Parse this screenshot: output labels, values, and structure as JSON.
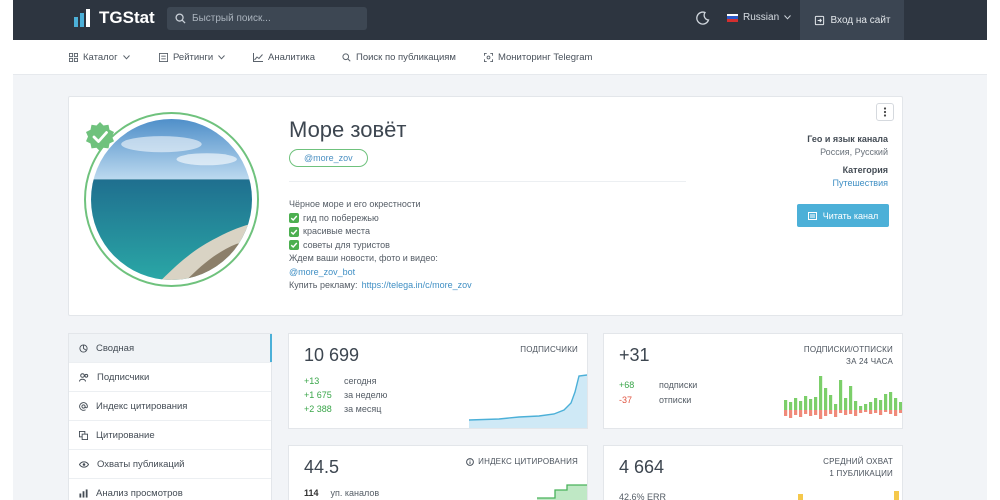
{
  "header": {
    "brand": "TGStat",
    "search_placeholder": "Быстрый поиск...",
    "language": "Russian",
    "login_label": "Вход на сайт"
  },
  "nav": {
    "items": [
      {
        "label": "Каталог",
        "icon": "grid-icon",
        "dropdown": true
      },
      {
        "label": "Рейтинги",
        "icon": "ratings-icon",
        "dropdown": true
      },
      {
        "label": "Аналитика",
        "icon": "chart-icon",
        "dropdown": false
      },
      {
        "label": "Поиск по публикациям",
        "icon": "search-icon",
        "dropdown": false
      },
      {
        "label": "Мониторинг Telegram",
        "icon": "monitor-icon",
        "dropdown": false
      }
    ]
  },
  "channel": {
    "title": "Море зовёт",
    "handle": "@more_zov",
    "description": {
      "intro": "Чёрное море и его окрестности",
      "bullets": [
        "гид по побережью",
        "красивые места",
        "советы для туристов"
      ],
      "news_line": "Ждем ваши новости, фото и видео:",
      "bot": "@more_zov_bot",
      "ads_label": "Купить рекламу:",
      "ads_link": "https://telega.in/c/more_zov"
    },
    "geo_label": "Гео и язык канала",
    "geo_value": "Россия, Русский",
    "category_label": "Категория",
    "category_value": "Путешествия",
    "read_button": "Читать канал"
  },
  "sidebar": {
    "items": [
      {
        "label": "Сводная",
        "icon": "summary-icon",
        "active": true
      },
      {
        "label": "Подписчики",
        "icon": "users-icon",
        "active": false
      },
      {
        "label": "Индекс цитирования",
        "icon": "at-icon",
        "active": false
      },
      {
        "label": "Цитирование",
        "icon": "quote-icon",
        "active": false
      },
      {
        "label": "Охваты публикаций",
        "icon": "eye-icon",
        "active": false
      },
      {
        "label": "Анализ просмотров",
        "icon": "bar-chart-icon",
        "active": false
      }
    ]
  },
  "stats": {
    "subscribers": {
      "value": "10 699",
      "label": "ПОДПИСЧИКИ",
      "rows": [
        {
          "delta": "+13",
          "period": "сегодня"
        },
        {
          "delta": "+1 675",
          "period": "за неделю"
        },
        {
          "delta": "+2 388",
          "period": "за месяц"
        }
      ]
    },
    "subs_unsubs": {
      "value": "+31",
      "label_line1": "ПОДПИСКИ/ОТПИСКИ",
      "label_line2": "ЗА 24 ЧАСА",
      "rows": [
        {
          "delta": "+68",
          "period": "подписки"
        },
        {
          "delta": "-37",
          "period": "отписки"
        }
      ]
    },
    "citation": {
      "value": "44.5",
      "label": "ИНДЕКС ЦИТИРОВАНИЯ",
      "row_num": "114",
      "row_text": "уп. каналов"
    },
    "reach": {
      "value": "4 664",
      "label_line1": "СРЕДНИЙ ОХВАТ",
      "label_line2": "1 ПУБЛИКАЦИИ",
      "row_text": "42.6% ERR"
    }
  },
  "colors": {
    "header_bg": "#2d3540",
    "accent_blue": "#4cb0d8",
    "verified_green": "#6fc27d",
    "positive": "#3aa64a",
    "negative": "#e0533f"
  }
}
